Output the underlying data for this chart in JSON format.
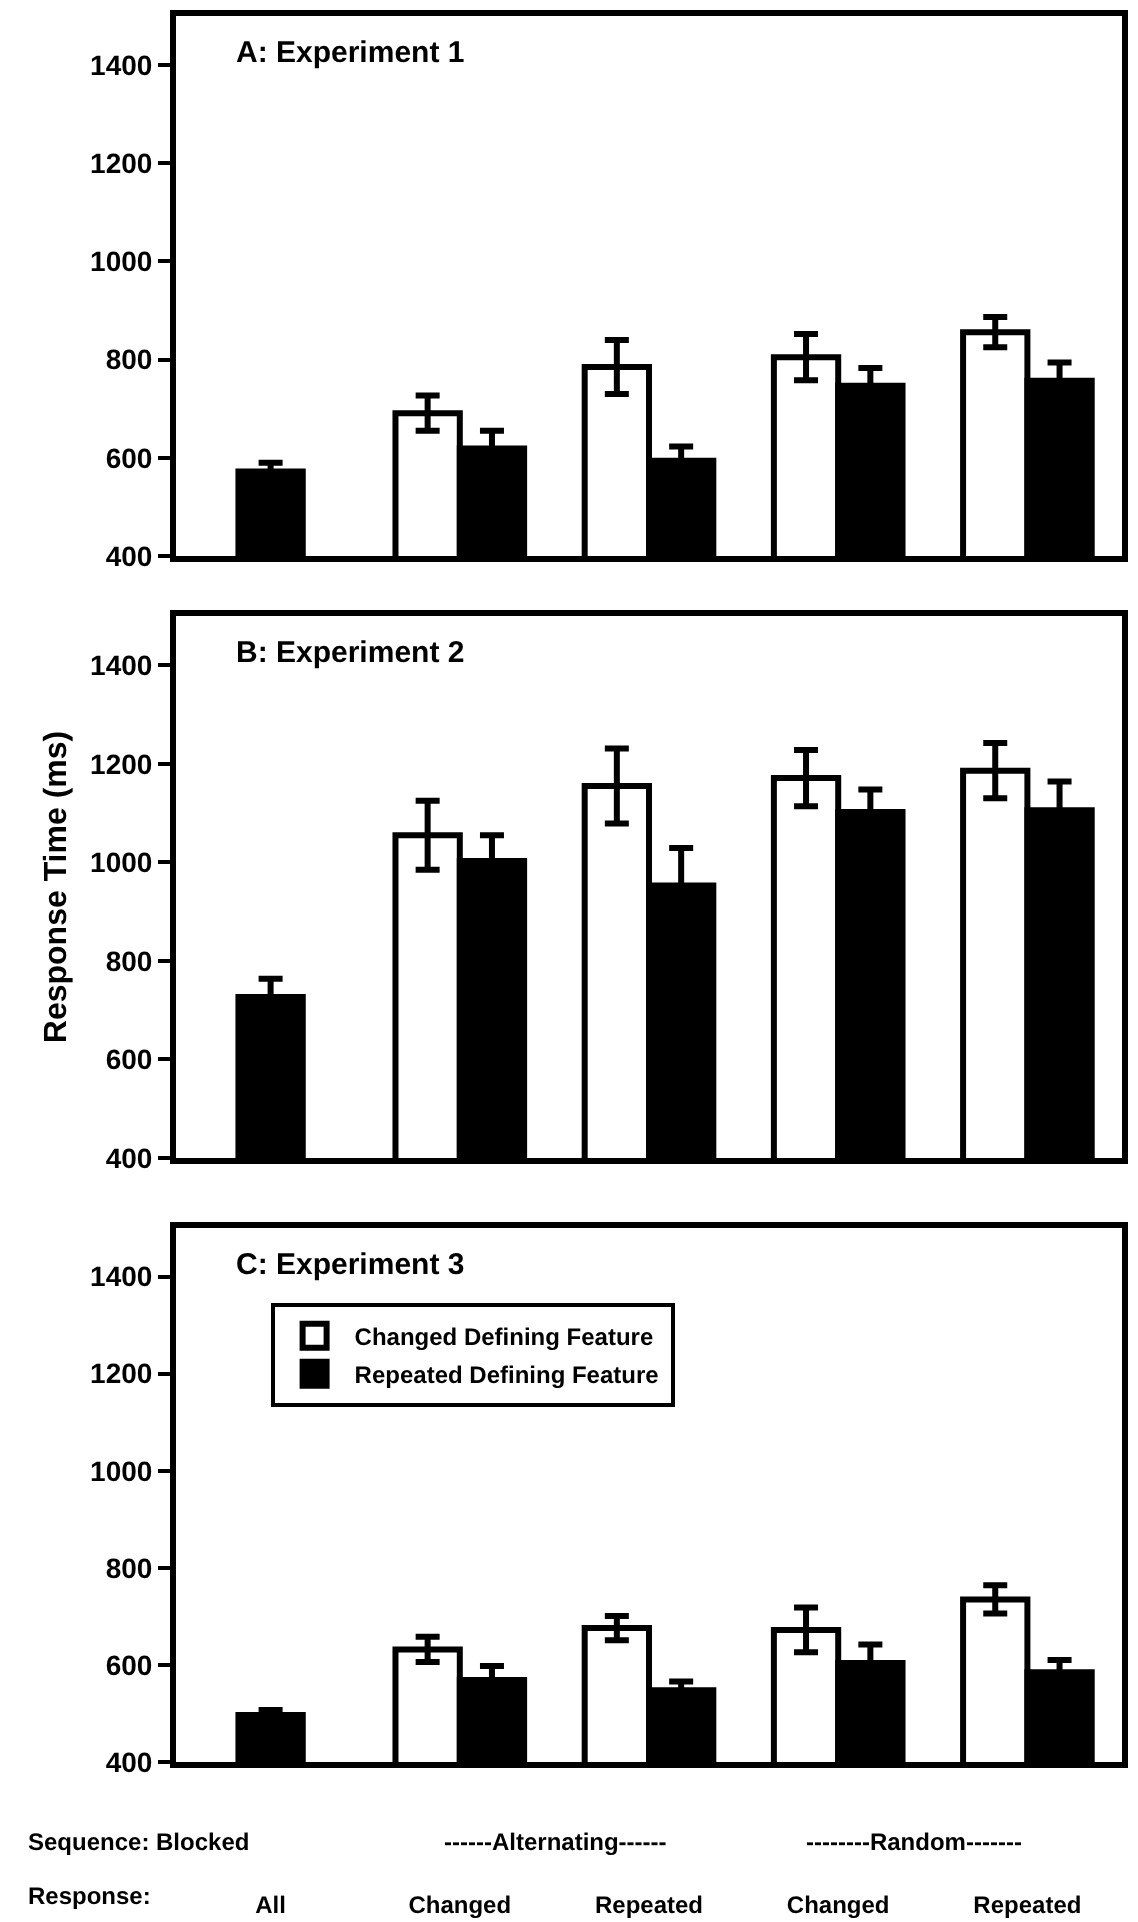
{
  "chart_data": [
    {
      "type": "bar",
      "title": "A: Experiment 1",
      "categories": [
        null,
        null,
        null,
        null,
        null
      ],
      "ylim": [
        400,
        1500
      ],
      "yticks": [
        400,
        600,
        800,
        1000,
        1200,
        1400
      ],
      "grid": false,
      "legend": false,
      "series": [
        {
          "color": "#ffffff",
          "values": [
            null,
            691,
            785,
            805,
            856
          ],
          "errors": [
            null,
            36,
            55,
            47,
            31
          ]
        },
        {
          "color": "#000000",
          "values": [
            572,
            619,
            594,
            747,
            757
          ],
          "errors": [
            18,
            36,
            29,
            36,
            37
          ]
        }
      ]
    },
    {
      "type": "bar",
      "title": "B: Experiment 2",
      "ylabel": "Response Time (ms)",
      "categories": [
        null,
        null,
        null,
        null,
        null
      ],
      "ylim": [
        400,
        1500
      ],
      "yticks": [
        400,
        600,
        800,
        1000,
        1200,
        1400
      ],
      "grid": false,
      "legend": false,
      "series": [
        {
          "color": "#ffffff",
          "values": [
            null,
            1055,
            1155,
            1171,
            1186
          ],
          "errors": [
            null,
            70,
            76,
            57,
            56
          ]
        },
        {
          "color": "#000000",
          "values": [
            727,
            1003,
            953,
            1102,
            1106
          ],
          "errors": [
            37,
            52,
            76,
            46,
            58
          ]
        }
      ]
    },
    {
      "type": "bar",
      "title": "C: Experiment 3",
      "categories": [
        "All",
        "Changed",
        "Repeated",
        "Changed",
        "Repeated"
      ],
      "ylim": [
        400,
        1500
      ],
      "yticks": [
        400,
        600,
        800,
        1000,
        1200,
        1400
      ],
      "grid": false,
      "legend": "top left",
      "annotations": [
        "Sequence: Blocked",
        "Response:",
        "------Alternating------",
        "--------Random-------"
      ],
      "series": [
        {
          "name": "Changed Defining Feature",
          "color": "#ffffff",
          "values": [
            null,
            632,
            676,
            672,
            735
          ],
          "errors": [
            null,
            26,
            25,
            46,
            29
          ]
        },
        {
          "name": "Repeated Defining Feature",
          "color": "#000000",
          "values": [
            497,
            569,
            548,
            604,
            585
          ],
          "errors": [
            10,
            29,
            18,
            38,
            25
          ]
        }
      ]
    }
  ]
}
